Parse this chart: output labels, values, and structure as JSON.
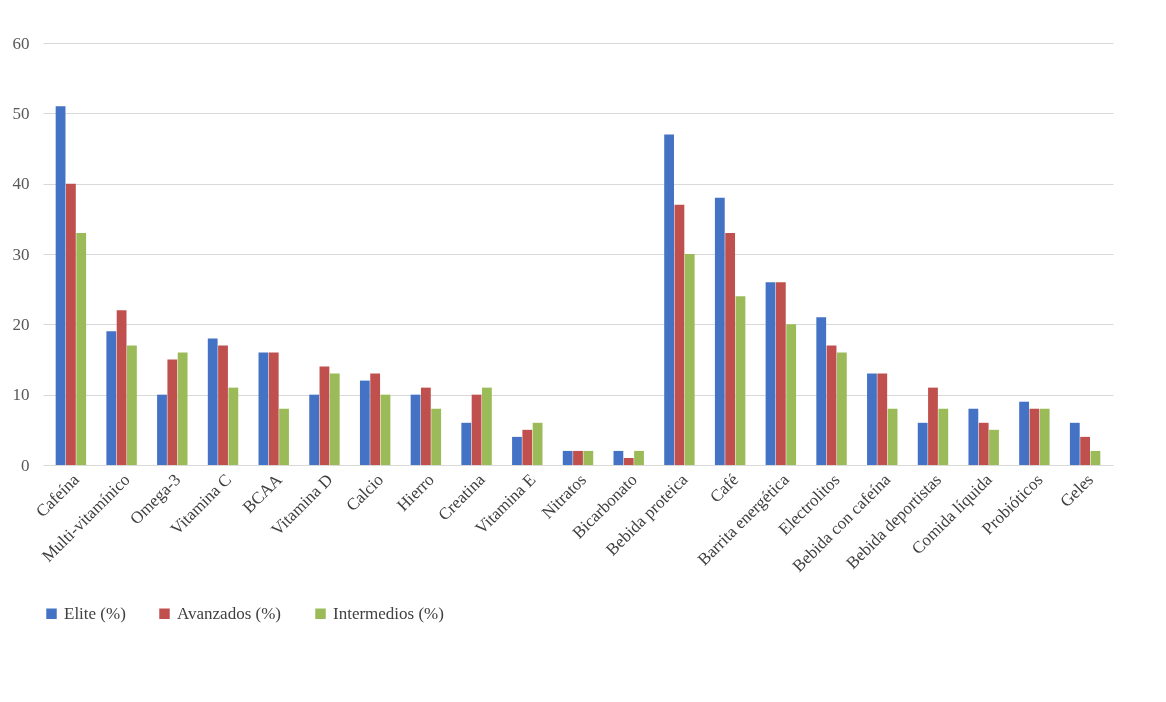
{
  "chart_data": {
    "type": "bar",
    "categories": [
      "Cafeína",
      "Multi-vitamínico",
      "Omega-3",
      "Vitamina C",
      "BCAA",
      "Vitamina D",
      "Calcio",
      "Hierro",
      "Creatina",
      "Vitamina E",
      "Nitratos",
      "Bicarbonato",
      "Bebida proteica",
      "Café",
      "Barrita energética",
      "Electrolitos",
      "Bebida con cafeína",
      "Bebida deportistas",
      "Comida líquida",
      "Probióticos",
      "Geles"
    ],
    "series": [
      {
        "name": "Elite (%)",
        "color": "#4472c4",
        "values": [
          51,
          19,
          10,
          18,
          16,
          10,
          12,
          10,
          6,
          4,
          2,
          2,
          47,
          38,
          26,
          21,
          13,
          6,
          8,
          9,
          6
        ]
      },
      {
        "name": "Avanzados (%)",
        "color": "#c0504d",
        "values": [
          40,
          22,
          15,
          17,
          16,
          14,
          13,
          11,
          10,
          5,
          2,
          1,
          37,
          33,
          26,
          17,
          13,
          11,
          6,
          8,
          4
        ]
      },
      {
        "name": "Intermedios (%)",
        "color": "#9bbb59",
        "values": [
          33,
          17,
          16,
          11,
          8,
          13,
          10,
          8,
          11,
          6,
          2,
          2,
          30,
          24,
          20,
          16,
          8,
          8,
          5,
          8,
          2
        ]
      }
    ],
    "ylim": [
      0,
      60
    ],
    "yticks": [
      0,
      10,
      20,
      30,
      40,
      50,
      60
    ],
    "grid": "y",
    "legend": "bottom"
  }
}
